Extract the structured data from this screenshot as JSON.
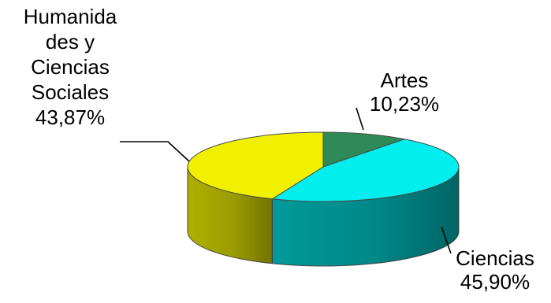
{
  "chart_data": {
    "type": "pie",
    "style": "3d",
    "slices": [
      {
        "label_lines": [
          "Artes",
          "10,23%"
        ],
        "value": 10.23,
        "color": "#2e8b57",
        "side_color": "#1f6640"
      },
      {
        "label_lines": [
          "Ciencias",
          "45,90%"
        ],
        "value": 45.9,
        "color": "#00eeee",
        "side_color": "#009a9a"
      },
      {
        "label_lines": [
          "Humanida",
          "des y",
          "Ciencias",
          "Sociales",
          "43,87%"
        ],
        "value": 43.87,
        "color": "#f0f000",
        "side_color": "#b0b000"
      }
    ],
    "legend": "none"
  }
}
